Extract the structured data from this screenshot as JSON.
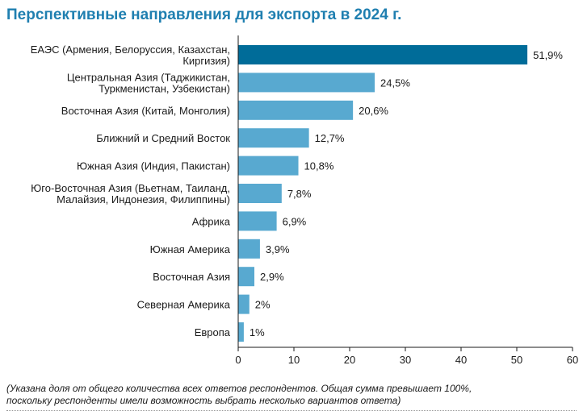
{
  "chart_data": {
    "type": "bar",
    "orientation": "horizontal",
    "title": "Перспективные направления для экспорта в 2024 г.",
    "categories": [
      [
        "ЕАЭС (Армения, Белоруссия, Казахстан,",
        "Киргизия)"
      ],
      [
        "Центральная Азия (Таджикистан,",
        "Туркменистан, Узбекистан)"
      ],
      [
        "Восточная Азия (Китай, Монголия)"
      ],
      [
        "Ближний и Средний Восток"
      ],
      [
        "Южная Азия (Индия, Пакистан)"
      ],
      [
        "Юго-Восточная Азия (Вьетнам, Таиланд,",
        "Малайзия, Индонезия, Филиппины)"
      ],
      [
        "Африка"
      ],
      [
        "Южная Америка"
      ],
      [
        "Восточная Азия"
      ],
      [
        "Северная Америка"
      ],
      [
        "Европа"
      ]
    ],
    "values": [
      51.9,
      24.5,
      20.6,
      12.7,
      10.8,
      7.8,
      6.9,
      3.9,
      2.9,
      2,
      1
    ],
    "value_labels": [
      "51,9%",
      "24,5%",
      "20,6%",
      "12,7%",
      "10,8%",
      "7,8%",
      "6,9%",
      "3,9%",
      "2,9%",
      "2%",
      "1%"
    ],
    "xlim": [
      0,
      60
    ],
    "xticks": [
      0,
      10,
      20,
      30,
      40,
      50,
      60
    ],
    "xlabel": "",
    "ylabel": "",
    "grid": false,
    "highlight_index": 0,
    "colors": {
      "highlight": "#006c99",
      "bar": "#58a9d0",
      "axis": "#1a1a1a"
    }
  },
  "footnote": {
    "line1": "(Указана доля от общего количества всех ответов респондентов. Общая сумма превышает 100%,",
    "line2": "поскольку респонденты имели возможность выбрать несколько вариантов ответа)"
  }
}
